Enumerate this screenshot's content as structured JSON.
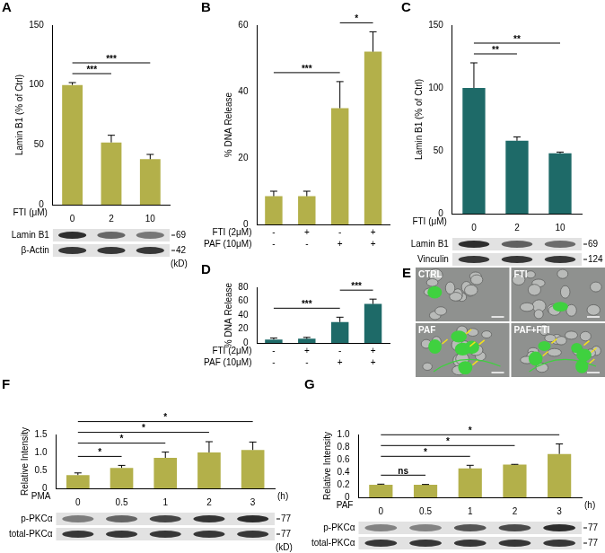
{
  "chart_data": [
    {
      "panel": "A",
      "type": "bar",
      "y_label": "Lamin B1 (% of Ctrl)",
      "x_label": "FTI (μM)",
      "categories": [
        "0",
        "2",
        "10"
      ],
      "values": [
        100,
        52,
        38
      ],
      "errors": [
        2,
        6,
        4
      ],
      "color": "#b3b04a",
      "ylim": [
        0,
        150
      ],
      "yticks": [
        0,
        50,
        100,
        150
      ],
      "grid": false,
      "comparisons": [
        {
          "bars": [
            0,
            1
          ],
          "label": "***"
        },
        {
          "bars": [
            0,
            2
          ],
          "label": "***"
        }
      ],
      "blots": [
        {
          "label": "Lamin B1",
          "size": 69
        },
        {
          "label": "β-Actin",
          "size": 42
        }
      ],
      "size_unit": "(kD)"
    },
    {
      "panel": "B",
      "type": "bar",
      "y_label": "% DNA Release",
      "values": [
        8.5,
        8.5,
        35,
        52
      ],
      "errors": [
        1.5,
        1.5,
        8,
        6
      ],
      "color": "#b3b04a",
      "ylim": [
        0,
        60
      ],
      "yticks": [
        0,
        20,
        40,
        60
      ],
      "grid": false,
      "tick_labels": "y",
      "rows": [
        {
          "label": "FTI (2μM)",
          "values": [
            "-",
            "+",
            "-",
            "+"
          ]
        },
        {
          "label": "PAF (10μM)",
          "values": [
            "-",
            "-",
            "+",
            "+"
          ]
        }
      ],
      "comparisons": [
        {
          "bars": [
            0,
            2
          ],
          "label": "***"
        },
        {
          "bars": [
            2,
            3
          ],
          "label": "*"
        }
      ]
    },
    {
      "panel": "C",
      "type": "bar",
      "y_label": "Lamin B1 (% of Ctrl)",
      "x_label": "FTI (μM)",
      "categories": [
        "0",
        "2",
        "10"
      ],
      "values": [
        100,
        58,
        48
      ],
      "errors": [
        20,
        3,
        1
      ],
      "color": "#1e6a68",
      "ylim": [
        0,
        150
      ],
      "yticks": [
        0,
        50,
        100,
        150
      ],
      "grid": false,
      "comparisons": [
        {
          "bars": [
            0,
            1
          ],
          "label": "**"
        },
        {
          "bars": [
            0,
            2
          ],
          "label": "**"
        }
      ],
      "blots": [
        {
          "label": "Lamin B1",
          "size": 69
        },
        {
          "label": "Vinculin",
          "size": 124
        }
      ]
    },
    {
      "panel": "D",
      "type": "bar",
      "y_label": "% DNA Release",
      "values": [
        5,
        6,
        30,
        56
      ],
      "errors": [
        2,
        2,
        7,
        7
      ],
      "color": "#1e6a68",
      "ylim": [
        0,
        80
      ],
      "yticks": [
        0,
        20,
        40,
        60,
        80
      ],
      "grid": false,
      "tick_labels": "y",
      "rows": [
        {
          "label": "FTI (2μM)",
          "values": [
            "-",
            "+",
            "-",
            "+"
          ]
        },
        {
          "label": "PAF (10μM)",
          "values": [
            "-",
            "-",
            "+",
            "+"
          ]
        }
      ],
      "comparisons": [
        {
          "bars": [
            0,
            2
          ],
          "label": "***"
        },
        {
          "bars": [
            2,
            3
          ],
          "label": "***"
        }
      ]
    },
    {
      "panel": "F",
      "type": "bar",
      "y_label": "Relative Intensity",
      "x_label": "PMA",
      "x_unit": "(h)",
      "categories": [
        "0",
        "0.5",
        "1",
        "2",
        "3"
      ],
      "values": [
        0.37,
        0.57,
        0.85,
        1.0,
        1.07
      ],
      "errors": [
        0.06,
        0.07,
        0.16,
        0.3,
        0.22
      ],
      "color": "#b3b04a",
      "ylim": [
        0,
        1.5
      ],
      "yticks": [
        0,
        0.5,
        {
          "value": 1,
          "label": "1.0"
        },
        1.5
      ],
      "grid": false,
      "comparisons": [
        {
          "bars": [
            0,
            1
          ],
          "label": "*"
        },
        {
          "bars": [
            0,
            2
          ],
          "label": "*"
        },
        {
          "bars": [
            0,
            3
          ],
          "label": "*"
        },
        {
          "bars": [
            0,
            4
          ],
          "label": "*"
        }
      ],
      "blots": [
        {
          "label": "p-PKCα",
          "size": 77
        },
        {
          "label": "total-PKCα",
          "size": 77
        }
      ],
      "size_unit": "(kD)"
    },
    {
      "panel": "G",
      "type": "bar",
      "y_label": "Relative Intensity",
      "x_label": "PAF",
      "x_unit": "(h)",
      "categories": [
        "0",
        "0.5",
        "1",
        "2",
        "3"
      ],
      "values": [
        0.2,
        0.2,
        0.46,
        0.52,
        0.69
      ],
      "errors": [
        0.01,
        0.005,
        0.05,
        0.005,
        0.16
      ],
      "color": "#b3b04a",
      "ylim": [
        0,
        1
      ],
      "yticks": [
        0,
        0.2,
        0.4,
        0.6,
        0.8,
        {
          "value": 1,
          "label": "1.0"
        }
      ],
      "grid": false,
      "comparisons": [
        {
          "bars": [
            0,
            1
          ],
          "label": "ns"
        },
        {
          "bars": [
            0,
            2
          ],
          "label": "*"
        },
        {
          "bars": [
            0,
            3
          ],
          "label": "*"
        },
        {
          "bars": [
            0,
            4
          ],
          "label": "*"
        }
      ],
      "blots": [
        {
          "label": "p-PKCα",
          "size": 77
        },
        {
          "label": "total-PKCα",
          "size": 77
        }
      ]
    }
  ],
  "image_panel": {
    "panel": "E",
    "labels": [
      "CTRL",
      "FTI",
      "PAF",
      "PAF+FTI"
    ]
  }
}
